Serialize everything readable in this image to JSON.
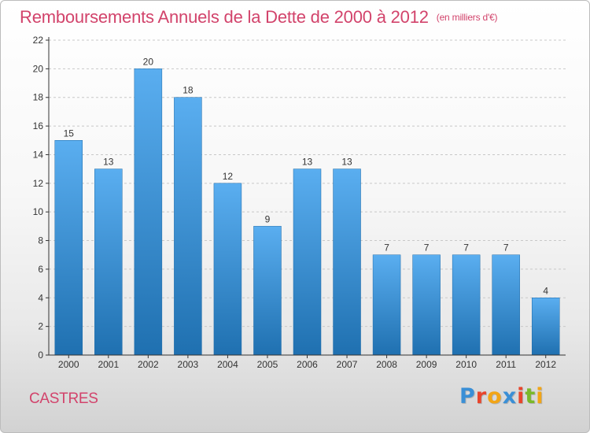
{
  "title": "Remboursements Annuels de la Dette de 2000 à 2012",
  "unit_note": "(en milliers d'€)",
  "city": "CASTRES",
  "logo": {
    "text": "Proxiti",
    "letters": [
      {
        "ch": "P",
        "color": "#3a8fd6"
      },
      {
        "ch": "r",
        "color": "#e8452c"
      },
      {
        "ch": "o",
        "color": "#f2a516"
      },
      {
        "ch": "x",
        "color": "#3a8fd6"
      },
      {
        "ch": "i",
        "color": "#e8452c"
      },
      {
        "ch": "t",
        "color": "#7ab929"
      },
      {
        "ch": "i",
        "color": "#f2a516"
      }
    ]
  },
  "colors": {
    "title": "#d2436b",
    "bar_top": "#5aaef0",
    "bar_bottom": "#1f70b0",
    "axis": "#333333",
    "grid": "#c8c8c8"
  },
  "chart_data": {
    "type": "bar",
    "categories": [
      "2000",
      "2001",
      "2002",
      "2003",
      "2004",
      "2005",
      "2006",
      "2007",
      "2008",
      "2009",
      "2010",
      "2011",
      "2012"
    ],
    "values": [
      15,
      13,
      20,
      18,
      12,
      9,
      13,
      13,
      7,
      7,
      7,
      7,
      4
    ],
    "data_labels": [
      "15",
      "13",
      "20",
      "18",
      "12",
      "9",
      "13",
      "13",
      "7",
      "7",
      "7",
      "7",
      "4"
    ],
    "ylim": [
      0,
      22
    ],
    "yticks": [
      0,
      2,
      4,
      6,
      8,
      10,
      12,
      14,
      16,
      18,
      20,
      22
    ],
    "grid": "horizontal dashed",
    "xlabel": "",
    "ylabel": ""
  }
}
